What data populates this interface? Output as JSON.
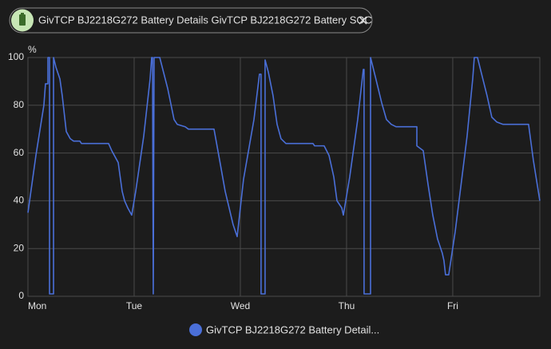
{
  "filter": "GivTCP BJ2218G272 Battery Details GivTCP BJ2218G272 Battery SOC",
  "chart_data": {
    "type": "line",
    "ylabel": "%",
    "x": [
      0,
      0.075,
      0.15,
      0.165,
      0.188,
      0.188,
      0.203,
      0.203,
      0.241,
      0.241,
      0.263,
      0.301,
      0.323,
      0.361,
      0.398,
      0.429,
      0.489,
      0.504,
      0.759,
      0.789,
      0.85,
      0.887,
      0.91,
      0.94,
      0.977,
      1.015,
      1.09,
      1.15,
      1.165,
      1.173,
      1.18,
      1.188,
      1.241,
      1.316,
      1.376,
      1.406,
      1.481,
      1.511,
      1.752,
      1.805,
      1.857,
      1.932,
      1.97,
      2.03,
      2.128,
      2.18,
      2.195,
      2.195,
      2.233,
      2.233,
      2.263,
      2.308,
      2.346,
      2.383,
      2.429,
      2.684,
      2.699,
      2.789,
      2.835,
      2.88,
      2.91,
      2.955,
      2.97,
      3.03,
      3.105,
      3.158,
      3.165,
      3.165,
      3.226,
      3.226,
      3.271,
      3.331,
      3.376,
      3.421,
      3.466,
      3.662,
      3.662,
      3.722,
      3.767,
      3.812,
      3.857,
      3.902,
      3.917,
      3.932,
      3.962,
      4.023,
      4.135,
      4.188,
      4.203,
      4.233,
      4.278,
      4.323,
      4.368,
      4.414,
      4.474,
      4.714,
      4.759,
      4.82
    ],
    "series": [
      {
        "name": "GivTCP BJ2218G272 Battery Detail...",
        "color": "#4a6fd8",
        "values": [
          35,
          59,
          80,
          89,
          89,
          100,
          100,
          1,
          1,
          100,
          96,
          91,
          84,
          69,
          66,
          65,
          65,
          64,
          64,
          61,
          56,
          44,
          40,
          37,
          34,
          44,
          67,
          91,
          100,
          100,
          1,
          100,
          100,
          87,
          74,
          72,
          71,
          70,
          70,
          57,
          44,
          30,
          25,
          49,
          74,
          93,
          93,
          1,
          1,
          99,
          94,
          84,
          72,
          66,
          64,
          64,
          63,
          63,
          59,
          50,
          40,
          37,
          34,
          50,
          74,
          95,
          95,
          1,
          1,
          100,
          92,
          81,
          74,
          72,
          71,
          71,
          63,
          61,
          47,
          34,
          24,
          18,
          15,
          9,
          9,
          27,
          67,
          91,
          100,
          100,
          92,
          84,
          75,
          73,
          72,
          72,
          57,
          40
        ]
      }
    ],
    "xlim": [
      0,
      4.82
    ],
    "xticks": [
      {
        "value": 0,
        "label": "Mon"
      },
      {
        "value": 1,
        "label": "Tue"
      },
      {
        "value": 2,
        "label": "Wed"
      },
      {
        "value": 3,
        "label": "Thu"
      },
      {
        "value": 4,
        "label": "Fri"
      }
    ],
    "ylim": [
      0,
      100
    ],
    "yticks": [
      0,
      20,
      40,
      60,
      80,
      100
    ],
    "grid": true
  }
}
